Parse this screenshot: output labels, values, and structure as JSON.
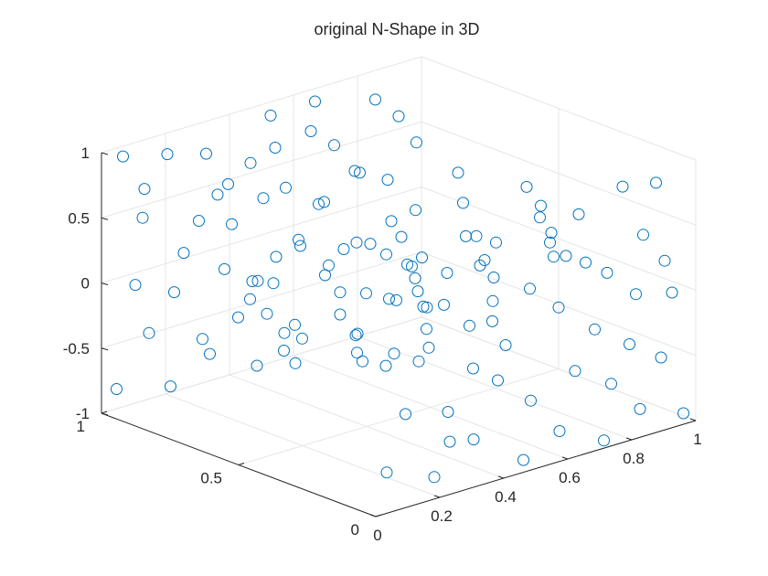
{
  "chart_data": {
    "type": "scatter",
    "title": "original N-Shape in 3D",
    "xlabel": "",
    "ylabel": "",
    "zlabel": "",
    "marker": "o",
    "marker_color": "#0072BD",
    "grid": true,
    "view": "3d-default",
    "xlim": [
      0,
      1
    ],
    "ylim": [
      0,
      1
    ],
    "zlim": [
      -1,
      1
    ],
    "x_ticks": [
      "0",
      "0.2",
      "0.4",
      "0.6",
      "0.8",
      "1"
    ],
    "y_ticks": [
      "0",
      "0.5",
      "1"
    ],
    "z_ticks": [
      "-1",
      "-0.5",
      "0",
      "0.5",
      "1"
    ],
    "shape": "N-shape: two vertical sheets (y=1 and y=0) joined by a diagonal sheet",
    "series": [
      {
        "type": "scatter3",
        "points": [
          [
            0.05,
            0.98,
            0.95
          ],
          [
            0.18,
            0.97,
            0.88
          ],
          [
            0.31,
            0.98,
            0.78
          ],
          [
            0.44,
            0.97,
            0.62
          ],
          [
            0.52,
            0.99,
            0.91
          ],
          [
            0.62,
            0.96,
            0.74
          ],
          [
            0.71,
            0.98,
            0.55
          ],
          [
            0.83,
            0.97,
            0.82
          ],
          [
            0.92,
            0.99,
            0.61
          ],
          [
            0.12,
            0.99,
            0.42
          ],
          [
            0.27,
            0.96,
            0.31
          ],
          [
            0.39,
            0.98,
            0.18
          ],
          [
            0.55,
            0.97,
            0.35
          ],
          [
            0.67,
            0.99,
            0.12
          ],
          [
            0.79,
            0.98,
            0.28
          ],
          [
            0.95,
            0.96,
            0.41
          ],
          [
            0.08,
            0.97,
            -0.05
          ],
          [
            0.21,
            0.98,
            -0.21
          ],
          [
            0.35,
            0.96,
            -0.12
          ],
          [
            0.48,
            0.99,
            -0.33
          ],
          [
            0.59,
            0.97,
            -0.08
          ],
          [
            0.74,
            0.98,
            -0.27
          ],
          [
            0.88,
            0.97,
            -0.15
          ],
          [
            0.14,
            0.99,
            -0.48
          ],
          [
            0.29,
            0.97,
            -0.62
          ],
          [
            0.41,
            0.98,
            -0.55
          ],
          [
            0.57,
            0.96,
            -0.71
          ],
          [
            0.69,
            0.99,
            -0.44
          ],
          [
            0.81,
            0.98,
            -0.66
          ],
          [
            0.93,
            0.97,
            -0.52
          ],
          [
            0.03,
            0.98,
            -0.82
          ],
          [
            0.19,
            0.97,
            -0.91
          ],
          [
            0.33,
            0.99,
            -0.78
          ],
          [
            0.46,
            0.97,
            -0.95
          ],
          [
            0.61,
            0.98,
            -0.86
          ],
          [
            0.76,
            0.96,
            -0.93
          ],
          [
            0.89,
            0.99,
            -0.77
          ],
          [
            0.98,
            0.97,
            -0.88
          ],
          [
            0.1,
            0.96,
            0.68
          ],
          [
            0.37,
            0.97,
            0.51
          ],
          [
            0.5,
            0.95,
            0.71
          ],
          [
            0.65,
            0.98,
            0.93
          ],
          [
            0.86,
            0.96,
            0.19
          ],
          [
            0.24,
            0.98,
            0.07
          ],
          [
            0.43,
            0.96,
            -0.41
          ],
          [
            0.02,
            0.6,
            0.98
          ],
          [
            0.12,
            0.55,
            0.92
          ],
          [
            0.25,
            0.48,
            0.85
          ],
          [
            0.38,
            0.52,
            0.96
          ],
          [
            0.15,
            0.45,
            0.61
          ],
          [
            0.3,
            0.42,
            0.55
          ],
          [
            0.45,
            0.38,
            0.72
          ],
          [
            0.6,
            0.4,
            0.88
          ],
          [
            0.22,
            0.62,
            0.34
          ],
          [
            0.35,
            0.58,
            0.21
          ],
          [
            0.5,
            0.49,
            0.39
          ],
          [
            0.65,
            0.44,
            0.58
          ],
          [
            0.78,
            0.36,
            0.67
          ],
          [
            0.28,
            0.7,
            0.03
          ],
          [
            0.42,
            0.62,
            -0.08
          ],
          [
            0.55,
            0.51,
            0.11
          ],
          [
            0.7,
            0.45,
            0.28
          ],
          [
            0.85,
            0.39,
            0.45
          ],
          [
            0.32,
            0.77,
            -0.29
          ],
          [
            0.48,
            0.69,
            -0.35
          ],
          [
            0.62,
            0.57,
            -0.18
          ],
          [
            0.76,
            0.49,
            0.02
          ],
          [
            0.9,
            0.41,
            0.19
          ],
          [
            0.4,
            0.8,
            -0.52
          ],
          [
            0.56,
            0.72,
            -0.58
          ],
          [
            0.7,
            0.63,
            -0.41
          ],
          [
            0.84,
            0.55,
            -0.22
          ],
          [
            0.95,
            0.46,
            -0.07
          ],
          [
            0.45,
            0.86,
            -0.74
          ],
          [
            0.61,
            0.78,
            -0.81
          ],
          [
            0.75,
            0.69,
            -0.66
          ],
          [
            0.88,
            0.6,
            -0.47
          ],
          [
            0.52,
            0.9,
            -0.92
          ],
          [
            0.67,
            0.83,
            -0.96
          ],
          [
            0.8,
            0.74,
            -0.88
          ],
          [
            0.93,
            0.66,
            -0.71
          ],
          [
            0.18,
            0.66,
            0.15
          ],
          [
            0.58,
            0.61,
            -0.66
          ],
          [
            0.72,
            0.58,
            -0.12
          ],
          [
            0.36,
            0.44,
            0.48
          ],
          [
            0.05,
            0.02,
            0.96
          ],
          [
            0.17,
            0.03,
            0.84
          ],
          [
            0.29,
            0.01,
            0.93
          ],
          [
            0.41,
            0.04,
            0.77
          ],
          [
            0.53,
            0.02,
            0.89
          ],
          [
            0.66,
            0.03,
            0.81
          ],
          [
            0.78,
            0.01,
            0.95
          ],
          [
            0.91,
            0.04,
            0.86
          ],
          [
            0.09,
            0.03,
            0.57
          ],
          [
            0.23,
            0.02,
            0.44
          ],
          [
            0.36,
            0.04,
            0.63
          ],
          [
            0.49,
            0.01,
            0.38
          ],
          [
            0.62,
            0.03,
            0.52
          ],
          [
            0.74,
            0.02,
            0.31
          ],
          [
            0.87,
            0.04,
            0.49
          ],
          [
            0.04,
            0.01,
            0.12
          ],
          [
            0.16,
            0.03,
            0.05
          ],
          [
            0.31,
            0.02,
            0.22
          ],
          [
            0.44,
            0.04,
            -0.04
          ],
          [
            0.58,
            0.01,
            0.17
          ],
          [
            0.71,
            0.03,
            -0.11
          ],
          [
            0.83,
            0.02,
            0.08
          ],
          [
            0.96,
            0.04,
            -0.02
          ],
          [
            0.11,
            0.02,
            -0.31
          ],
          [
            0.26,
            0.04,
            -0.42
          ],
          [
            0.39,
            0.01,
            -0.25
          ],
          [
            0.51,
            0.03,
            -0.51
          ],
          [
            0.64,
            0.02,
            -0.37
          ],
          [
            0.77,
            0.04,
            -0.58
          ],
          [
            0.9,
            0.01,
            -0.45
          ],
          [
            0.06,
            0.03,
            -0.73
          ],
          [
            0.2,
            0.02,
            -0.86
          ],
          [
            0.34,
            0.04,
            -0.69
          ],
          [
            0.47,
            0.01,
            -0.92
          ],
          [
            0.6,
            0.03,
            -0.81
          ],
          [
            0.73,
            0.02,
            -0.97
          ],
          [
            0.86,
            0.04,
            -0.84
          ],
          [
            0.97,
            0.01,
            -0.93
          ],
          [
            0.14,
            0.02,
            0.71
          ],
          [
            0.57,
            0.03,
            0.66
          ],
          [
            0.81,
            0.02,
            -0.29
          ],
          [
            0.33,
            0.03,
            -0.13
          ],
          [
            0.69,
            0.04,
            0.41
          ],
          [
            0.24,
            0.01,
            -0.61
          ],
          [
            0.92,
            0.02,
            0.27
          ]
        ]
      }
    ]
  }
}
